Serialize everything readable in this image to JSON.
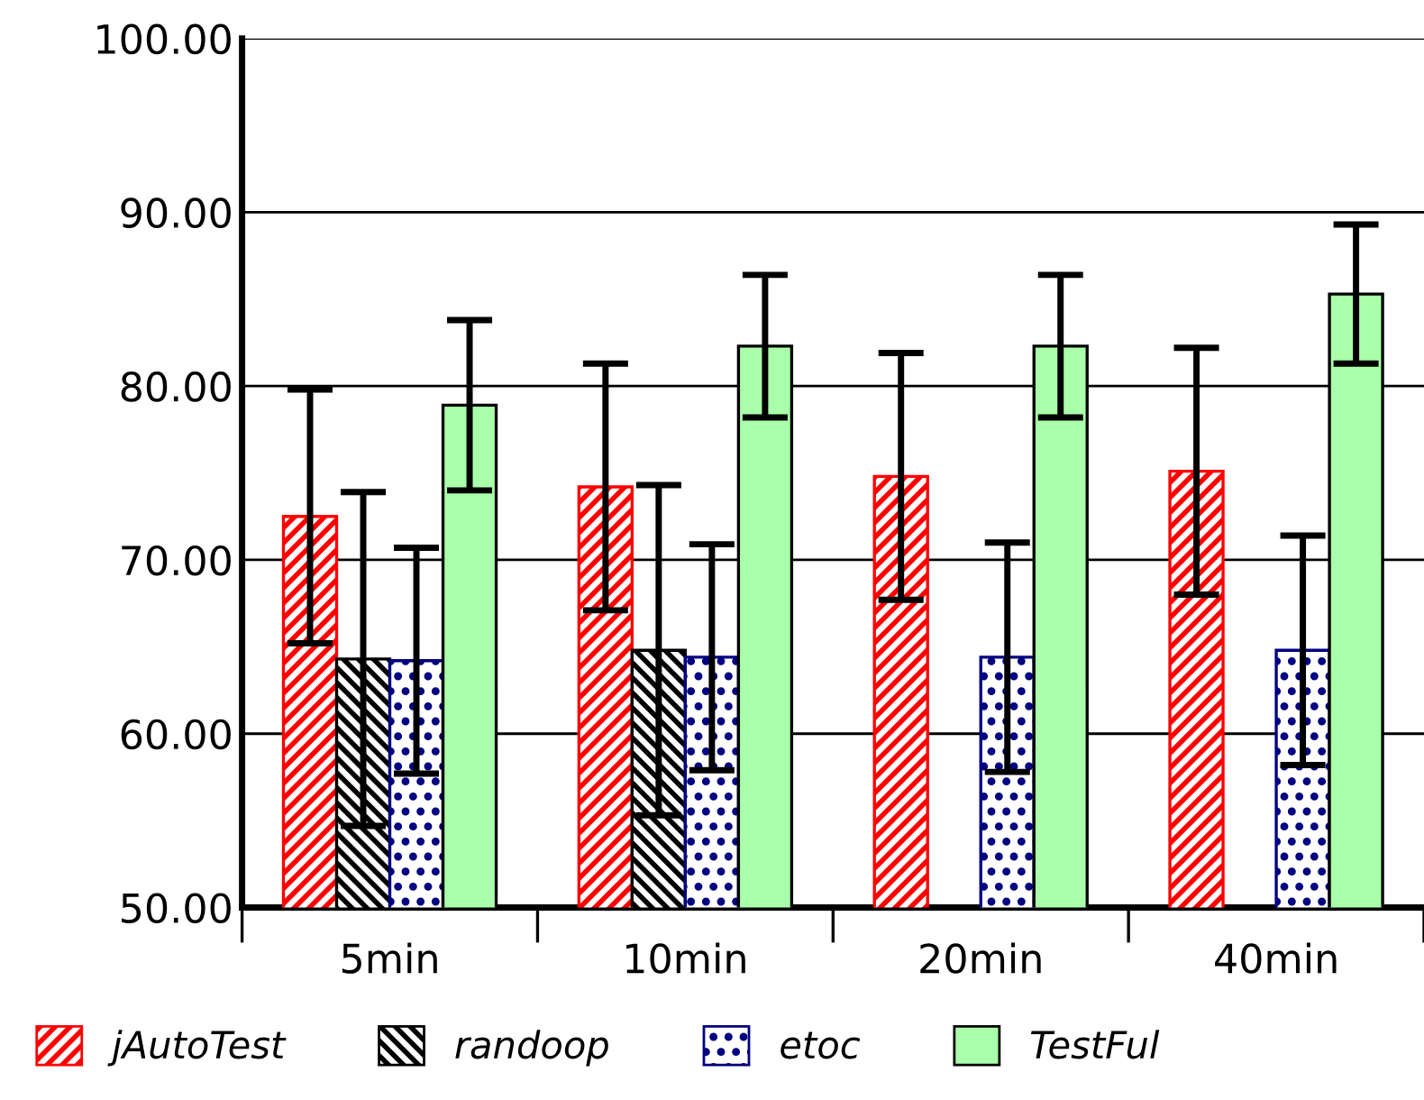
{
  "chart_data": {
    "type": "bar",
    "categories": [
      "5min",
      "10min",
      "20min",
      "40min"
    ],
    "series": [
      {
        "name": "jAutoTest",
        "color": "#ff0000",
        "values": [
          72.5,
          74.2,
          74.8,
          75.1
        ],
        "errors": [
          7.3,
          7.1,
          7.1,
          7.1
        ]
      },
      {
        "name": "randoop",
        "color": "#000000",
        "values": [
          64.3,
          64.8,
          null,
          null
        ],
        "errors": [
          9.6,
          9.5,
          null,
          null
        ]
      },
      {
        "name": "etoc",
        "color": "#000080",
        "values": [
          64.2,
          64.4,
          64.4,
          64.8
        ],
        "errors": [
          6.5,
          6.5,
          6.6,
          6.6
        ]
      },
      {
        "name": "TestFul",
        "color": "#aaffaa",
        "values": [
          78.9,
          82.3,
          82.3,
          85.3
        ],
        "errors": [
          4.9,
          4.1,
          4.1,
          4.0
        ]
      }
    ],
    "ylim": [
      50,
      100
    ],
    "yticks": [
      {
        "value": 50,
        "label": "50.00"
      },
      {
        "value": 60,
        "label": "60.00"
      },
      {
        "value": 70,
        "label": "70.00"
      },
      {
        "value": 80,
        "label": "80.00"
      },
      {
        "value": 90,
        "label": "90.00"
      },
      {
        "value": 100,
        "label": "100.00"
      }
    ],
    "grid": "y",
    "legend": "bottom"
  }
}
